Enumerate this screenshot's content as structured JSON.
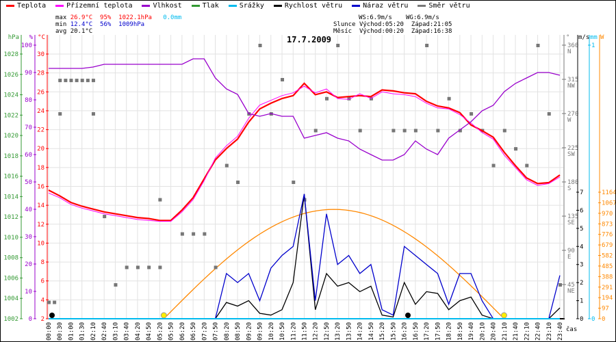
{
  "legend": [
    {
      "label": "Teplota",
      "color": "#ff0000"
    },
    {
      "label": "Přízemní teplota",
      "color": "#ff00ff"
    },
    {
      "label": "Vlhkost",
      "color": "#9900cc"
    },
    {
      "label": "Tlak",
      "color": "#339933"
    },
    {
      "label": "Srážky",
      "color": "#00bbee"
    },
    {
      "label": "Rychlost větru",
      "color": "#000000"
    },
    {
      "label": "Náraz větru",
      "color": "#0000cc"
    },
    {
      "label": "Směr větru",
      "color": "#777777"
    }
  ],
  "stats": {
    "max_label": "max",
    "max_temp": "26.9°C",
    "max_hum": "95%",
    "max_press": "1022.1hPa",
    "max_rain": "0.0mm",
    "min_label": "min",
    "min_temp": "12.4°C",
    "min_hum": "56%",
    "min_press": "1009hPa",
    "avg_label": "avg",
    "avg_temp": "20.1°C",
    "ws": "WS:6.9m/s",
    "wg": "WG:6.9m/s",
    "sun_label": "Slunce",
    "sun_rise": "Východ:05:20",
    "sun_set": "Západ:21:05",
    "moon_label": "Měsíc",
    "moon_rise": "Východ:00:20",
    "moon_set": "Západ:16:38"
  },
  "chart_data": {
    "type": "line",
    "title": "17.7.2009",
    "xlabel": "čas",
    "axis_units": {
      "press": "hPa",
      "hum": "%",
      "temp": "°C",
      "dir": "°",
      "wind": "m/s",
      "rain": "mm",
      "sun": "W"
    },
    "ticks": {
      "press": [
        1002,
        1004,
        1006,
        1008,
        1010,
        1012,
        1014,
        1016,
        1018,
        1020,
        1022,
        1024,
        1026,
        1028
      ],
      "hum": [
        0,
        10,
        20,
        30,
        40,
        50,
        60,
        70,
        80,
        90,
        100
      ],
      "temp": [
        2,
        4,
        6,
        8,
        10,
        12,
        14,
        16,
        18,
        20,
        22,
        24,
        26,
        28,
        30
      ],
      "dir": [
        [
          "45",
          "NE"
        ],
        [
          "90",
          "E"
        ],
        [
          "135",
          "SE"
        ],
        [
          "180",
          "S"
        ],
        [
          "225",
          "SW"
        ],
        [
          "270",
          "W"
        ],
        [
          "315",
          "NW"
        ],
        [
          "360",
          "N"
        ]
      ],
      "wind": [
        0,
        1,
        2,
        3,
        4,
        5,
        6,
        7
      ],
      "rain": [
        0,
        1
      ],
      "sun": [
        0,
        97,
        194,
        291,
        388,
        485,
        582,
        679,
        776,
        873,
        970,
        1067,
        1164
      ]
    },
    "ranges": {
      "temp": [
        2,
        30
      ],
      "hum": [
        0,
        100
      ],
      "dir": [
        0,
        360
      ],
      "wind": [
        0,
        7
      ],
      "sun": [
        0,
        1164
      ]
    },
    "x": [
      "00:00",
      "00:30",
      "01:00",
      "01:30",
      "02:10",
      "02:40",
      "03:10",
      "03:40",
      "04:20",
      "04:50",
      "05:20",
      "05:50",
      "06:20",
      "06:50",
      "07:20",
      "07:50",
      "08:20",
      "08:50",
      "09:20",
      "09:50",
      "10:20",
      "10:50",
      "11:20",
      "11:50",
      "12:20",
      "12:50",
      "13:20",
      "13:50",
      "14:20",
      "14:50",
      "15:20",
      "15:50",
      "16:20",
      "16:50",
      "17:20",
      "17:50",
      "18:20",
      "18:50",
      "19:40",
      "20:10",
      "20:40",
      "21:10",
      "21:40",
      "22:10",
      "22:40",
      "23:10",
      "23:40"
    ],
    "series": [
      {
        "name": "Teplota",
        "axis": "temp",
        "color": "#ff0000",
        "width": 2.2,
        "values": [
          15.6,
          15.0,
          14.3,
          13.9,
          13.6,
          13.3,
          13.1,
          12.9,
          12.7,
          12.6,
          12.4,
          12.4,
          13.5,
          14.8,
          16.8,
          18.8,
          20.0,
          21.0,
          22.8,
          24.2,
          24.8,
          25.3,
          25.6,
          26.9,
          25.7,
          26.0,
          25.4,
          25.5,
          25.6,
          25.5,
          26.2,
          26.1,
          25.9,
          25.8,
          25.0,
          24.5,
          24.3,
          23.8,
          22.5,
          21.9,
          21.2,
          19.6,
          18.2,
          16.9,
          16.3,
          16.4,
          17.2
        ]
      },
      {
        "name": "Přízemní teplota",
        "axis": "temp",
        "color": "#ff00ff",
        "width": 1,
        "values": [
          15.3,
          14.8,
          14.1,
          13.7,
          13.4,
          13.1,
          12.9,
          12.7,
          12.5,
          12.4,
          12.3,
          12.3,
          13.3,
          14.6,
          16.6,
          19.0,
          20.3,
          21.3,
          23.2,
          24.6,
          25.1,
          25.6,
          25.9,
          26.6,
          25.9,
          26.3,
          25.3,
          25.2,
          25.8,
          25.3,
          26.0,
          25.8,
          25.7,
          25.5,
          24.8,
          24.3,
          24.2,
          23.6,
          22.7,
          21.7,
          21.0,
          19.3,
          18.0,
          16.7,
          16.1,
          16.3,
          17.0
        ]
      },
      {
        "name": "Vlhkost",
        "axis": "hum",
        "color": "#9900cc",
        "width": 1.3,
        "values": [
          91.5,
          91.5,
          91.5,
          91.5,
          92,
          93,
          93,
          93,
          93,
          93,
          93,
          93,
          93,
          95,
          95,
          88,
          84,
          82,
          75,
          74,
          75,
          74,
          74,
          66,
          67,
          68,
          66,
          65,
          62,
          60,
          58,
          58,
          60,
          65,
          62,
          60,
          66,
          69,
          72,
          76,
          78,
          83,
          86,
          88,
          90,
          90,
          89
        ]
      },
      {
        "name": "Rychlost větru",
        "axis": "wind",
        "color": "#000000",
        "width": 1.3,
        "values": [
          0,
          0,
          0,
          0,
          0,
          0,
          0,
          0,
          0,
          0,
          0,
          0,
          0,
          0,
          0,
          0,
          0.9,
          0.7,
          1.0,
          0.3,
          0.2,
          0.5,
          2.0,
          6.9,
          0.5,
          2.5,
          1.8,
          2.0,
          1.5,
          1.8,
          0.2,
          0.1,
          2.0,
          0.8,
          1.5,
          1.4,
          0.5,
          1.0,
          1.2,
          0.2,
          0,
          0,
          0,
          0,
          0,
          0,
          0.6
        ]
      },
      {
        "name": "Náraz větru",
        "axis": "wind",
        "color": "#0000cc",
        "width": 1.3,
        "values": [
          0,
          0,
          0,
          0,
          0,
          0,
          0,
          0,
          0,
          0,
          0,
          0,
          0,
          0,
          0,
          0,
          2.5,
          2.0,
          2.5,
          1.0,
          2.8,
          3.5,
          4.0,
          6.9,
          1.0,
          5.8,
          3.0,
          3.5,
          2.5,
          3.0,
          0.5,
          0.2,
          4.0,
          3.5,
          3.0,
          2.5,
          0.8,
          2.5,
          2.5,
          1.0,
          0,
          0,
          0,
          0,
          0,
          0,
          2.4
        ]
      },
      {
        "name": "Srážky",
        "axis": "rain",
        "color": "#00bbee",
        "width": 2,
        "values": [
          0,
          0,
          0,
          0,
          0,
          0,
          0,
          0,
          0,
          0,
          0,
          0,
          0,
          0,
          0,
          0,
          0,
          0,
          0,
          0,
          0,
          0,
          0,
          0,
          0,
          0,
          0,
          0,
          0,
          0,
          0,
          0,
          0,
          0,
          0,
          0,
          0,
          0,
          0,
          0,
          0,
          0,
          0,
          0,
          0,
          0,
          0
        ]
      }
    ],
    "wind_direction": [
      [
        0,
        22
      ],
      [
        0.5,
        22
      ],
      [
        1,
        314
      ],
      [
        1,
        270
      ],
      [
        1.5,
        314
      ],
      [
        2,
        314
      ],
      [
        2.5,
        314
      ],
      [
        3,
        314
      ],
      [
        3.5,
        314
      ],
      [
        4,
        270
      ],
      [
        4,
        314
      ],
      [
        5,
        135
      ],
      [
        6,
        45
      ],
      [
        7,
        68
      ],
      [
        8,
        68
      ],
      [
        9,
        68
      ],
      [
        10,
        157
      ],
      [
        10,
        68
      ],
      [
        12,
        112
      ],
      [
        13,
        112
      ],
      [
        14,
        112
      ],
      [
        15,
        68
      ],
      [
        16,
        202
      ],
      [
        17,
        180
      ],
      [
        18,
        270
      ],
      [
        19,
        360
      ],
      [
        20,
        270
      ],
      [
        21,
        315
      ],
      [
        22,
        180
      ],
      [
        23,
        157
      ],
      [
        24,
        248
      ],
      [
        25,
        290
      ],
      [
        26,
        360
      ],
      [
        27,
        290
      ],
      [
        28,
        248
      ],
      [
        29,
        290
      ],
      [
        31,
        248
      ],
      [
        32,
        248
      ],
      [
        33,
        248
      ],
      [
        34,
        360
      ],
      [
        35,
        248
      ],
      [
        36,
        290
      ],
      [
        37,
        248
      ],
      [
        38,
        270
      ],
      [
        39,
        248
      ],
      [
        40,
        202
      ],
      [
        41,
        248
      ],
      [
        42,
        224
      ],
      [
        43,
        202
      ],
      [
        44,
        360
      ],
      [
        45,
        270
      ],
      [
        46,
        45
      ]
    ],
    "sun": {
      "rise": "05:20",
      "set": "21:05",
      "peak_w": 1006,
      "color": "#ff8800"
    }
  }
}
